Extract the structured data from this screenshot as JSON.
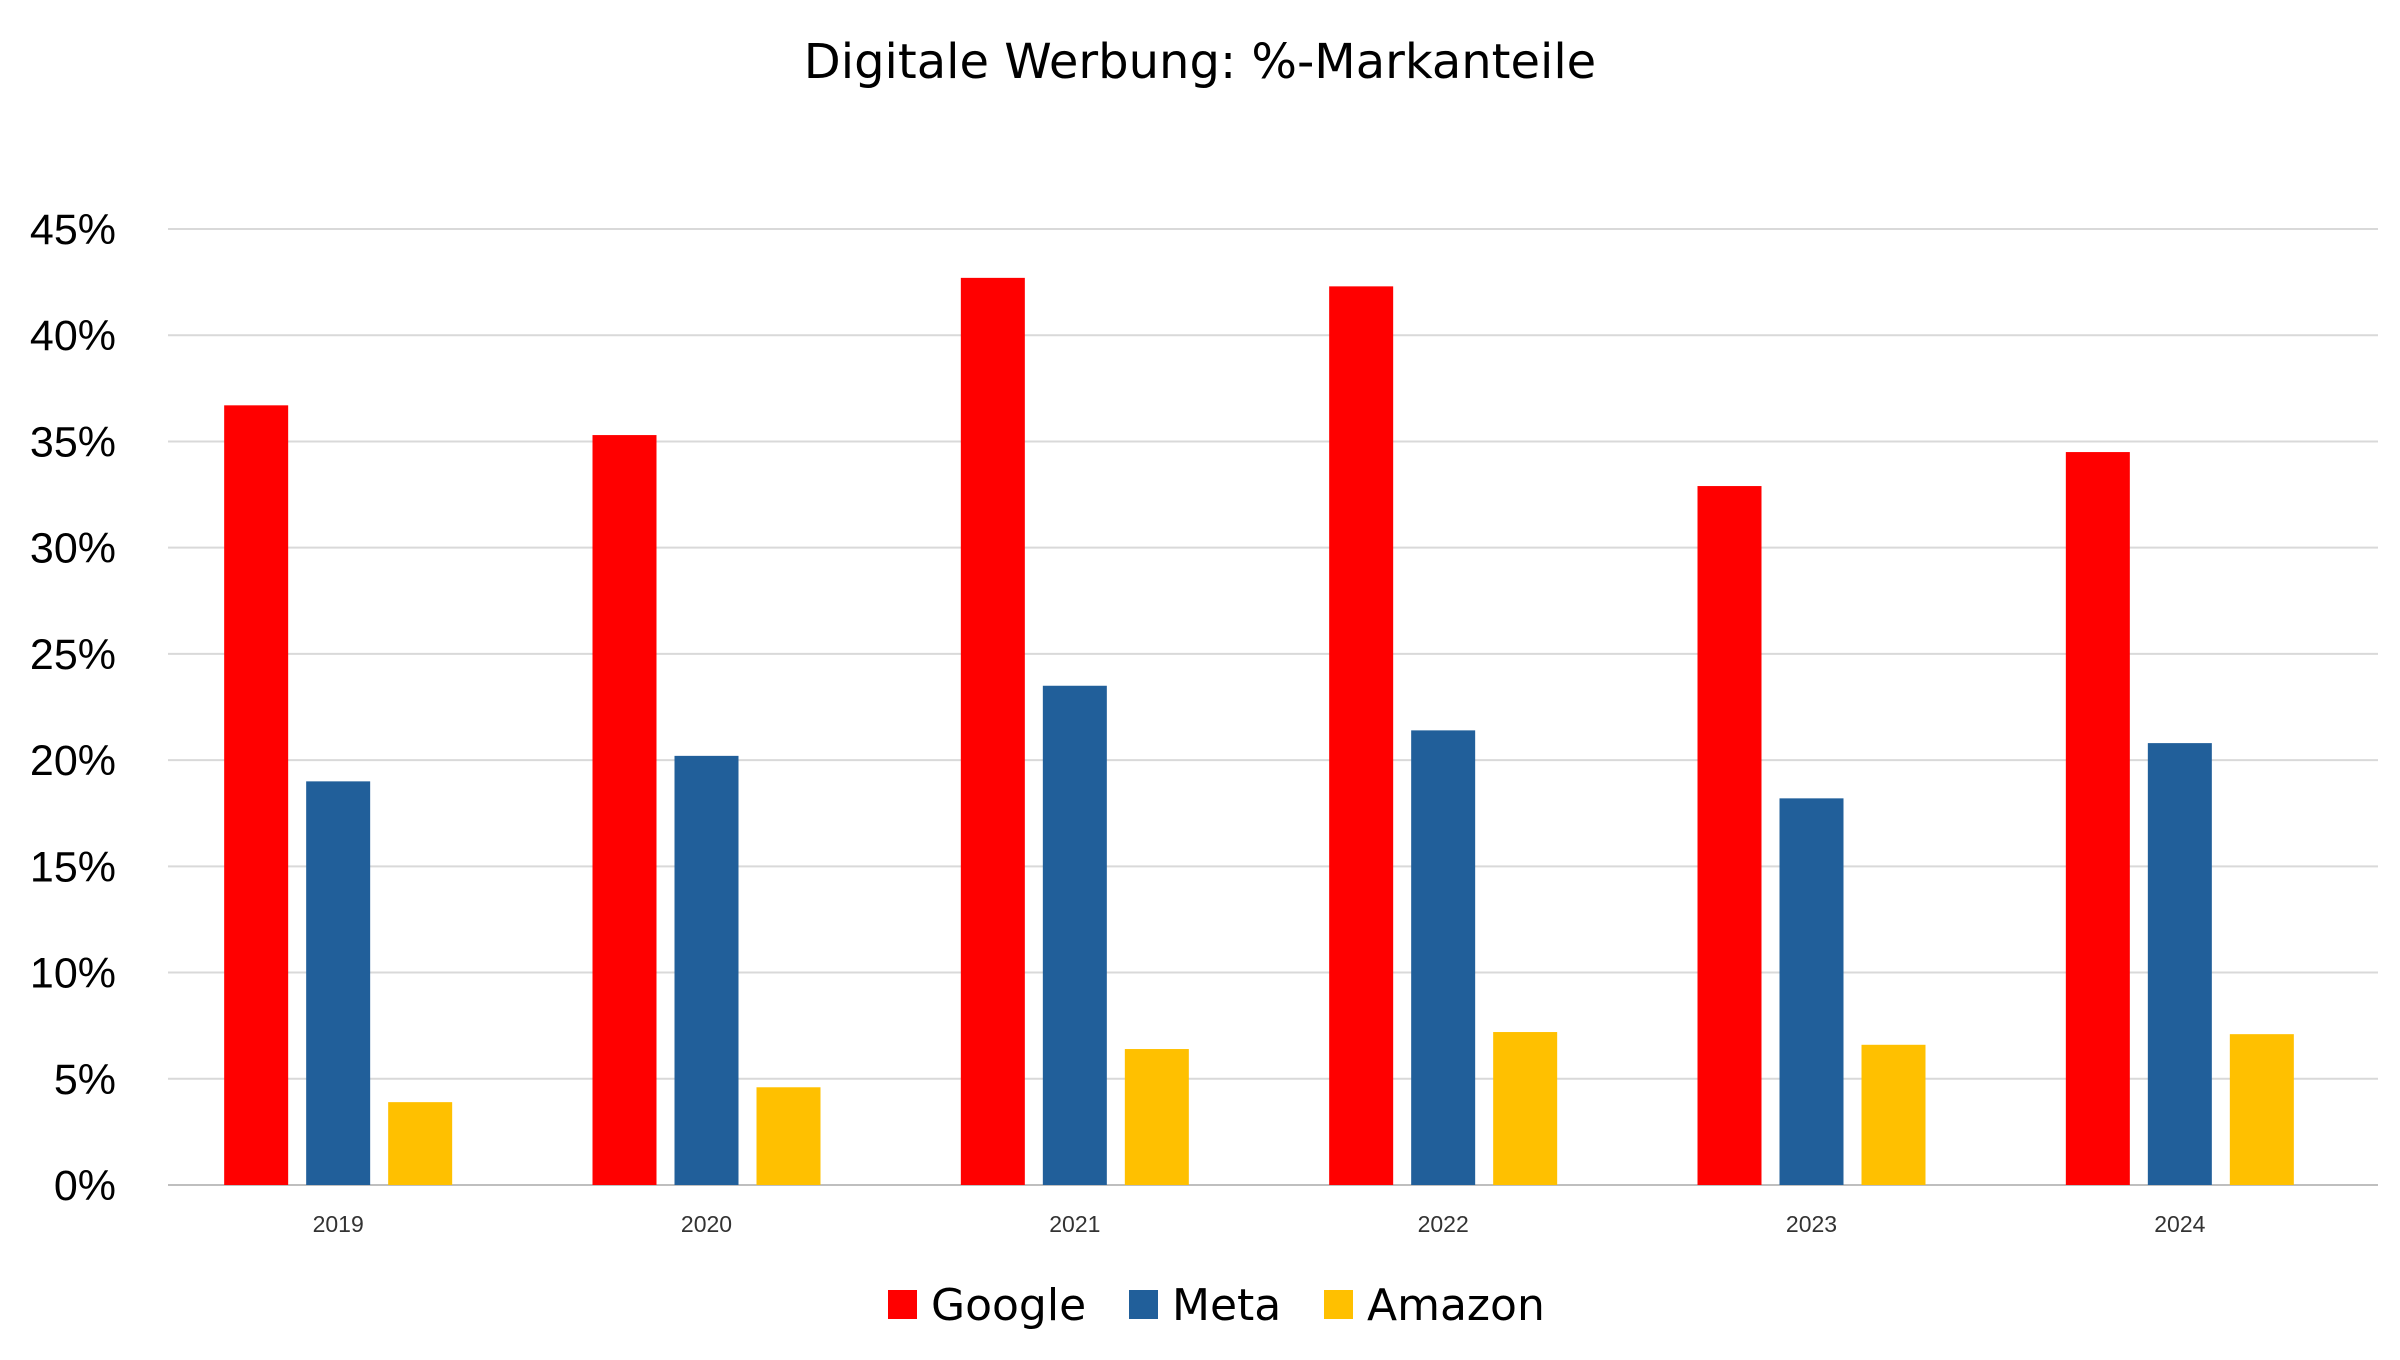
{
  "chart_data": {
    "type": "bar",
    "title": "Digitale Werbung: %-Markanteile",
    "xlabel": "",
    "ylabel": "",
    "categories": [
      "2019",
      "2020",
      "2021",
      "2022",
      "2023",
      "2024"
    ],
    "series": [
      {
        "name": "Google",
        "color": "#ff0000",
        "values": [
          36.7,
          35.3,
          42.7,
          42.3,
          32.9,
          34.5
        ]
      },
      {
        "name": "Meta",
        "color": "#215f9a",
        "values": [
          19.0,
          20.2,
          23.5,
          21.4,
          18.2,
          20.8
        ]
      },
      {
        "name": "Amazon",
        "color": "#ffc000",
        "values": [
          3.9,
          4.6,
          6.4,
          7.2,
          6.6,
          7.1
        ]
      }
    ],
    "ylim": [
      0,
      45
    ],
    "yticks": [
      "0%",
      "5%",
      "10%",
      "15%",
      "20%",
      "25%",
      "30%",
      "35%",
      "40%",
      "45%"
    ],
    "grid": true,
    "legend_position": "bottom"
  }
}
